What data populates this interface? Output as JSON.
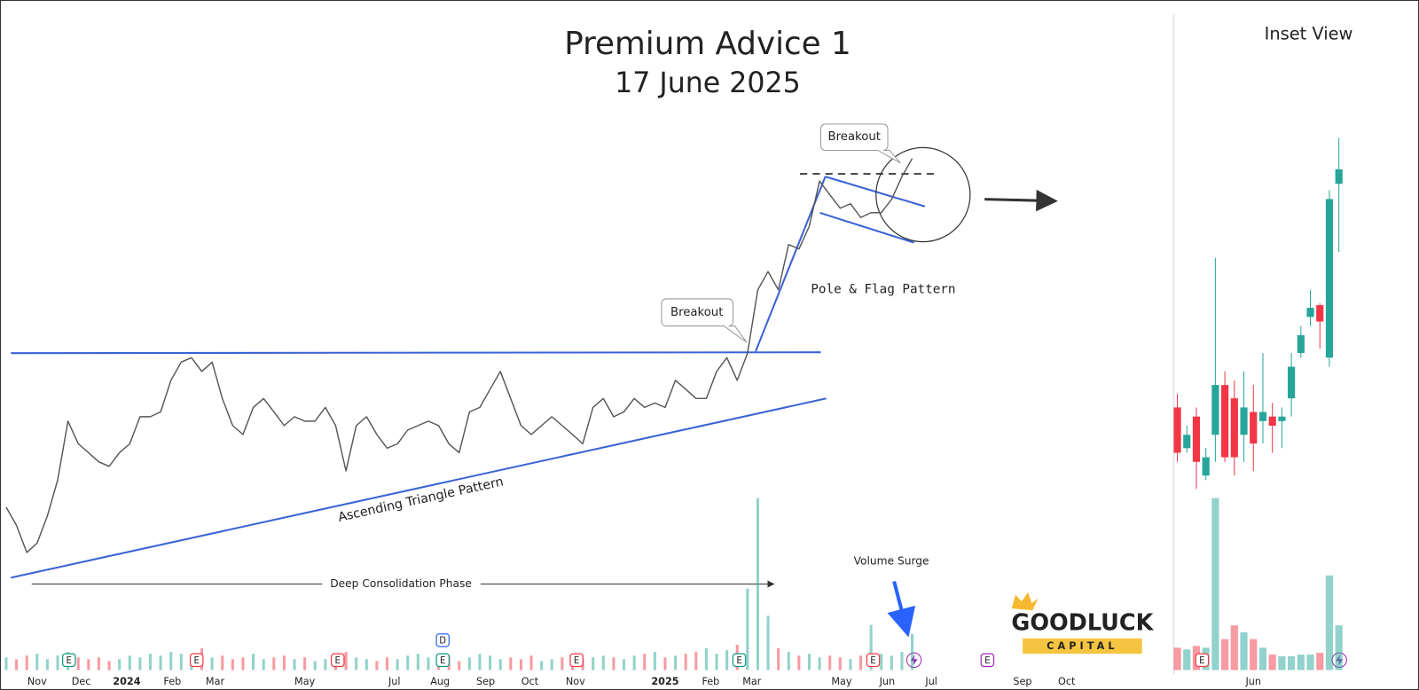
{
  "chart_data": [
    {
      "type": "line",
      "title": "Premium Advice 1",
      "subtitle": "17 June 2025",
      "annotations": [
        "Breakout",
        "Breakout",
        "Pole & Flag Pattern",
        "Ascending Triangle Pattern",
        "Deep Consolidation Phase",
        "Volume Surge"
      ],
      "x": [
        -3,
        -2,
        -1,
        0,
        1,
        2,
        3,
        4,
        5,
        6,
        7,
        8,
        9,
        10,
        11,
        12,
        13,
        14,
        15,
        16,
        17,
        18,
        19,
        20,
        21,
        22,
        23,
        24,
        25,
        26,
        27,
        28,
        29,
        30,
        31,
        32,
        33,
        34,
        35,
        36,
        37,
        38,
        39,
        40,
        41,
        42,
        43,
        44,
        45,
        46,
        47,
        48,
        49,
        50,
        51,
        52,
        53,
        54,
        55,
        56,
        57,
        58,
        59,
        60,
        61,
        62,
        63,
        64,
        65,
        66,
        67,
        68,
        69,
        70,
        71,
        72,
        73,
        74,
        75,
        76,
        77,
        78,
        79,
        80,
        81,
        82,
        83,
        84,
        85
      ],
      "series": [
        {
          "color": "#555555",
          "values": [
            16.3,
            12.2,
            6.1,
            8.2,
            14.3,
            22.4,
            35.7,
            30.6,
            28.6,
            26.5,
            25.5,
            28.6,
            30.6,
            36.7,
            36.7,
            37.8,
            44.9,
            49,
            50,
            46.9,
            49,
            40.8,
            34.7,
            32.7,
            38.8,
            40.8,
            37.8,
            34.7,
            36.7,
            35.7,
            35.7,
            38.8,
            34.7,
            24.5,
            34.7,
            36.7,
            32.7,
            29.6,
            30.6,
            33.7,
            34.7,
            35.7,
            34.7,
            30.6,
            28.6,
            37.8,
            38.8,
            42.9,
            46.9,
            40.8,
            34.7,
            32.7,
            34.7,
            36.7,
            34.7,
            32.7,
            30.6,
            38.8,
            40.8,
            36.7,
            37.8,
            40.8,
            38.8,
            39.8,
            38.8,
            44.9,
            42.9,
            40.8,
            40.8,
            46.9,
            50,
            44.9,
            51,
            65.3,
            69.4,
            65.3,
            75.5,
            74.5,
            79.6,
            89.8,
            86.7,
            83.7,
            84.7,
            81.6,
            82.7,
            82.7,
            85.7,
            90.8,
            94.9
          ]
        },
        {
          "axis": "y2",
          "color": "#26a69a",
          "values": [
            7,
            6,
            8,
            9,
            6,
            8,
            10,
            7,
            6,
            7,
            5,
            6,
            8,
            7,
            9,
            8,
            10,
            9,
            8,
            12,
            7,
            8,
            6,
            7,
            9,
            6,
            7,
            8,
            6,
            7,
            5,
            6,
            8,
            10,
            7,
            6,
            5,
            7,
            6,
            8,
            9,
            7,
            6,
            8,
            5,
            7,
            9,
            8,
            6,
            7,
            6,
            8,
            5,
            6,
            7,
            9,
            6,
            7,
            8,
            7,
            6,
            8,
            9,
            10,
            7,
            8,
            9,
            10,
            12,
            9,
            11,
            14,
            45,
            95,
            30,
            12,
            10,
            8,
            9,
            7,
            8,
            7,
            6,
            8,
            25,
            9,
            8,
            10,
            20
          ]
        }
      ],
      "up_color": "#26a69a",
      "down_color": "#f23645",
      "xlim": [
        -3.6,
        110.4
      ],
      "xticks": [
        {
          "value": 0,
          "label": "Nov"
        },
        {
          "value": 4.29,
          "label": "Dec"
        },
        {
          "value": 8.71,
          "label": "2024"
        },
        {
          "value": 13.14,
          "label": "Feb"
        },
        {
          "value": 17.29,
          "label": "Mar"
        },
        {
          "value": 26,
          "label": "May"
        },
        {
          "value": 34.71,
          "label": "Jul"
        },
        {
          "value": 39.14,
          "label": "Aug"
        },
        {
          "value": 43.57,
          "label": "Sep"
        },
        {
          "value": 47.86,
          "label": "Oct"
        },
        {
          "value": 52.29,
          "label": "Nov"
        },
        {
          "value": 61,
          "label": "2025"
        },
        {
          "value": 65.43,
          "label": "Feb"
        },
        {
          "value": 69.43,
          "label": "Mar"
        },
        {
          "value": 78.14,
          "label": "May"
        },
        {
          "value": 82.57,
          "label": "Jun"
        },
        {
          "value": 86.86,
          "label": "Jul"
        },
        {
          "value": 95.71,
          "label": "Sep"
        },
        {
          "value": 100,
          "label": "Oct"
        }
      ],
      "ylim": [
        0,
        100
      ],
      "y2lim": [
        0,
        100
      ],
      "events": [
        {
          "x": 3.1,
          "label": "E",
          "color": "#089981"
        },
        {
          "x": 15.5,
          "label": "E",
          "color": "#f23645"
        },
        {
          "x": 29.2,
          "label": "E",
          "color": "#f23645"
        },
        {
          "x": 39.4,
          "label": "E",
          "color": "#089981"
        },
        {
          "x": 39.4,
          "label": "D",
          "color": "#2962ff"
        },
        {
          "x": 52.4,
          "label": "E",
          "color": "#f23645"
        },
        {
          "x": 68.2,
          "label": "E",
          "color": "#089981"
        },
        {
          "x": 81.2,
          "label": "E",
          "color": "#f23645"
        },
        {
          "x": 92.3,
          "label": "E",
          "color": "#9c27b0"
        }
      ]
    },
    {
      "type": "candlestick",
      "title": "Inset View",
      "categories": [
        null,
        null,
        null,
        null,
        null,
        null,
        null,
        null,
        "Jun",
        null,
        null,
        null,
        null,
        null,
        null,
        null,
        null,
        null
      ],
      "open": [
        26.2,
        15.5,
        23.8,
        8.3,
        19,
        32.1,
        28.6,
        19,
        25,
        22.6,
        23.8,
        22.6,
        28.6,
        40.5,
        50,
        53.1,
        39.3,
        85
      ],
      "high": [
        29.8,
        21.4,
        26.2,
        15.5,
        65.5,
        35.7,
        33.3,
        35.7,
        32.1,
        40.5,
        27.4,
        26.2,
        40.5,
        47.6,
        57.1,
        53.6,
        83.3,
        97.1
      ],
      "low": [
        11.9,
        14.3,
        4.8,
        7.1,
        11.9,
        11.9,
        8.3,
        11.9,
        9.5,
        16.7,
        14.3,
        15.5,
        23.8,
        39.3,
        47.6,
        41.7,
        36.9,
        67.1
      ],
      "close": [
        14.3,
        19,
        11.9,
        13.1,
        32.1,
        13.1,
        13.1,
        26.2,
        16.7,
        25,
        21.4,
        23.8,
        36.9,
        45.2,
        52.4,
        48.8,
        81,
        88.8
      ],
      "volume": [
        13,
        12,
        14,
        13,
        100,
        18,
        26,
        22,
        18,
        13,
        9,
        8,
        8,
        9,
        9,
        10,
        55,
        26
      ],
      "up_color": "#26a69a",
      "down_color": "#f23645",
      "ylim": [
        0,
        100
      ],
      "y2lim": [
        0,
        100
      ],
      "events": [
        {
          "x": 2.6,
          "label": "E",
          "color": "#f23645"
        }
      ]
    }
  ],
  "logo": {
    "name": "GOODLUCK",
    "tagline": "CAPITAL"
  }
}
